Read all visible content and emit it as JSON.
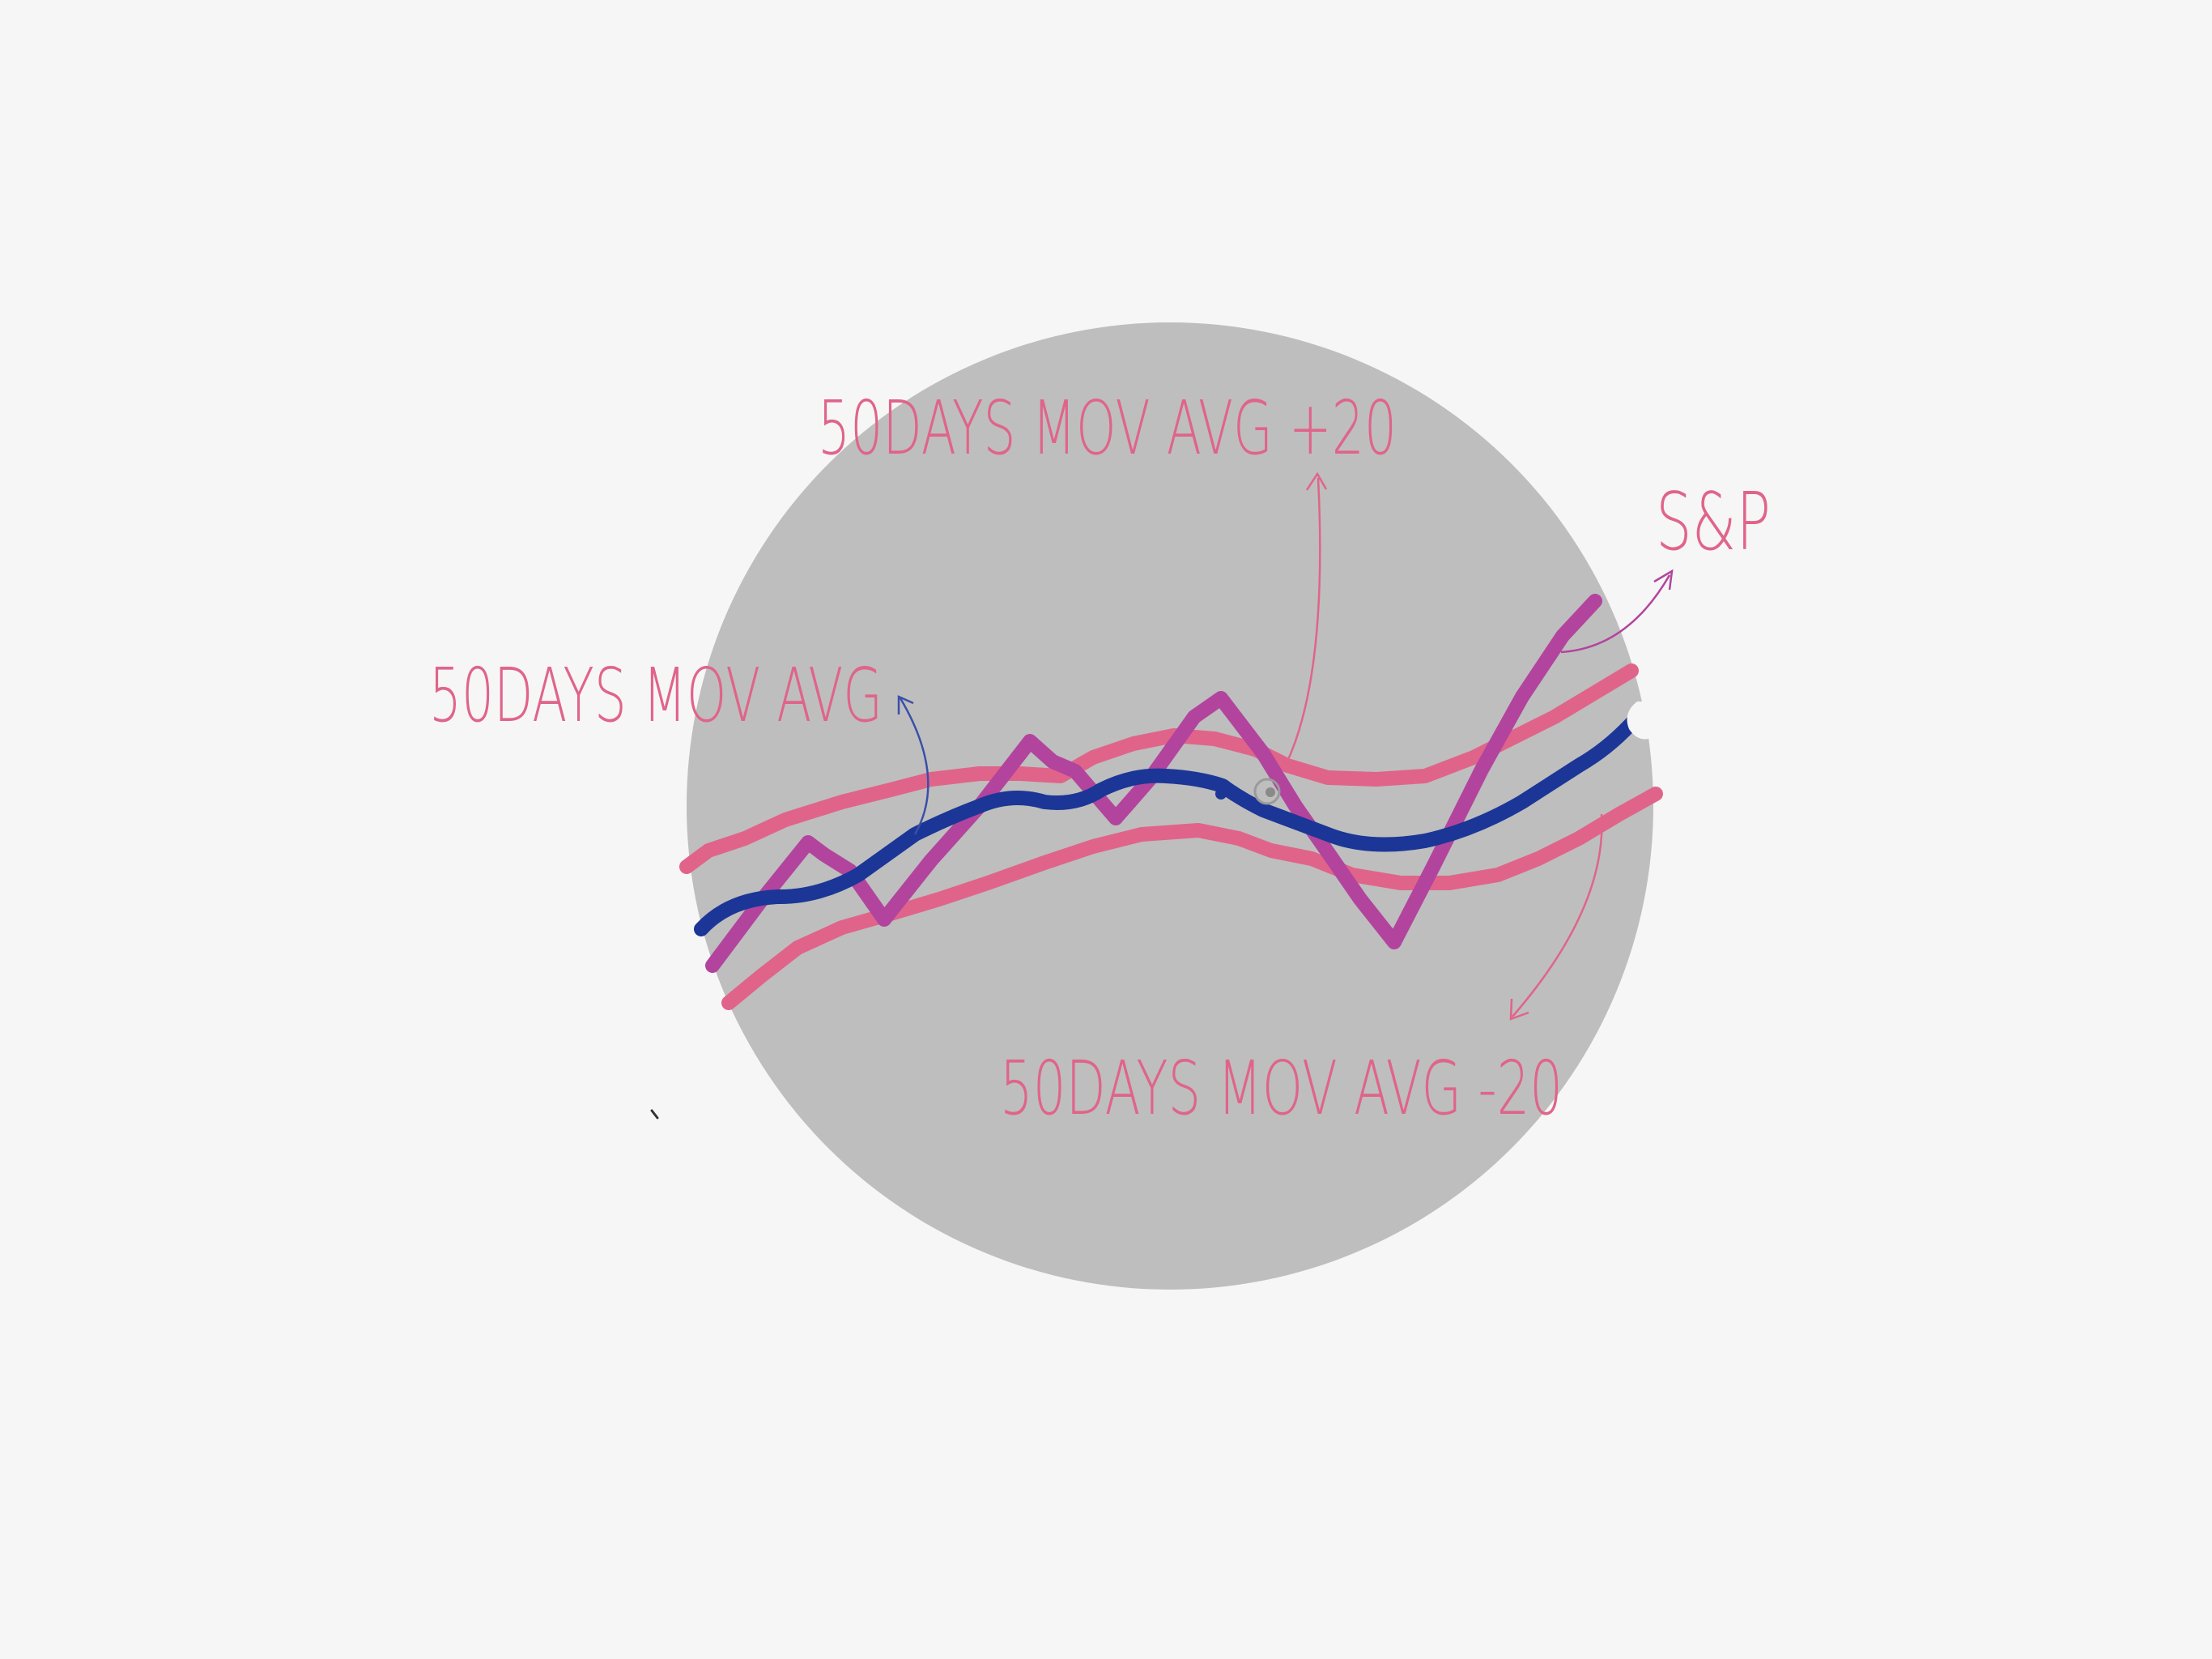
{
  "colors": {
    "background": "#f6f6f6",
    "circle": "#bebebe",
    "sp_line": "#b2449e",
    "band_line": "#e0648a",
    "avg_line": "#1b3696",
    "annotation_avg": "#3a4fa8"
  },
  "labels": {
    "avg_plus": "50DAYS MOV AVG +20",
    "avg": "50DAYS MOV AVG",
    "sp": "S&P",
    "avg_minus": "50DAYS MOV AVG -20"
  }
}
